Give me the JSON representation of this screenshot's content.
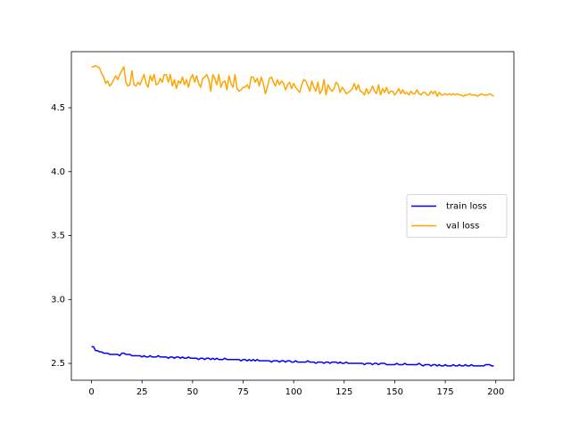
{
  "chart_data": {
    "type": "line",
    "x": [
      0,
      1,
      2,
      3,
      4,
      5,
      6,
      7,
      8,
      9,
      10,
      11,
      12,
      13,
      14,
      15,
      16,
      17,
      18,
      19,
      20,
      21,
      22,
      23,
      24,
      25,
      26,
      27,
      28,
      29,
      30,
      31,
      32,
      33,
      34,
      35,
      36,
      37,
      38,
      39,
      40,
      41,
      42,
      43,
      44,
      45,
      46,
      47,
      48,
      49,
      50,
      51,
      52,
      53,
      54,
      55,
      56,
      57,
      58,
      59,
      60,
      61,
      62,
      63,
      64,
      65,
      66,
      67,
      68,
      69,
      70,
      71,
      72,
      73,
      74,
      75,
      76,
      77,
      78,
      79,
      80,
      81,
      82,
      83,
      84,
      85,
      86,
      87,
      88,
      89,
      90,
      91,
      92,
      93,
      94,
      95,
      96,
      97,
      98,
      99,
      100,
      101,
      102,
      103,
      104,
      105,
      106,
      107,
      108,
      109,
      110,
      111,
      112,
      113,
      114,
      115,
      116,
      117,
      118,
      119,
      120,
      121,
      122,
      123,
      124,
      125,
      126,
      127,
      128,
      129,
      130,
      131,
      132,
      133,
      134,
      135,
      136,
      137,
      138,
      139,
      140,
      141,
      142,
      143,
      144,
      145,
      146,
      147,
      148,
      149,
      150,
      151,
      152,
      153,
      154,
      155,
      156,
      157,
      158,
      159,
      160,
      161,
      162,
      163,
      164,
      165,
      166,
      167,
      168,
      169,
      170,
      171,
      172,
      173,
      174,
      175,
      176,
      177,
      178,
      179,
      180,
      181,
      182,
      183,
      184,
      185,
      186,
      187,
      188,
      189,
      190,
      191,
      192,
      193,
      194,
      195,
      196,
      197,
      198,
      199
    ],
    "series": [
      {
        "name": "train loss",
        "color": "#0000ff",
        "values": [
          2.63,
          2.63,
          2.6,
          2.6,
          2.59,
          2.59,
          2.58,
          2.58,
          2.58,
          2.57,
          2.57,
          2.57,
          2.57,
          2.57,
          2.56,
          2.58,
          2.58,
          2.57,
          2.57,
          2.57,
          2.56,
          2.56,
          2.56,
          2.56,
          2.56,
          2.55,
          2.56,
          2.55,
          2.55,
          2.56,
          2.55,
          2.55,
          2.55,
          2.56,
          2.55,
          2.55,
          2.55,
          2.55,
          2.54,
          2.55,
          2.55,
          2.54,
          2.55,
          2.55,
          2.54,
          2.55,
          2.54,
          2.54,
          2.55,
          2.54,
          2.54,
          2.54,
          2.54,
          2.53,
          2.54,
          2.54,
          2.53,
          2.54,
          2.54,
          2.53,
          2.54,
          2.53,
          2.54,
          2.53,
          2.53,
          2.53,
          2.54,
          2.53,
          2.53,
          2.53,
          2.53,
          2.53,
          2.53,
          2.53,
          2.52,
          2.53,
          2.53,
          2.52,
          2.53,
          2.52,
          2.53,
          2.52,
          2.53,
          2.52,
          2.52,
          2.52,
          2.52,
          2.52,
          2.52,
          2.51,
          2.52,
          2.52,
          2.52,
          2.51,
          2.52,
          2.52,
          2.51,
          2.52,
          2.52,
          2.51,
          2.51,
          2.52,
          2.51,
          2.51,
          2.51,
          2.51,
          2.51,
          2.52,
          2.51,
          2.51,
          2.51,
          2.5,
          2.51,
          2.51,
          2.51,
          2.5,
          2.51,
          2.51,
          2.5,
          2.51,
          2.51,
          2.51,
          2.5,
          2.51,
          2.5,
          2.5,
          2.51,
          2.5,
          2.5,
          2.5,
          2.5,
          2.5,
          2.5,
          2.5,
          2.5,
          2.49,
          2.5,
          2.5,
          2.5,
          2.49,
          2.5,
          2.5,
          2.49,
          2.5,
          2.5,
          2.5,
          2.49,
          2.49,
          2.49,
          2.49,
          2.49,
          2.5,
          2.49,
          2.49,
          2.49,
          2.5,
          2.49,
          2.49,
          2.49,
          2.49,
          2.49,
          2.49,
          2.5,
          2.49,
          2.48,
          2.49,
          2.49,
          2.49,
          2.48,
          2.49,
          2.49,
          2.48,
          2.49,
          2.48,
          2.48,
          2.49,
          2.48,
          2.48,
          2.48,
          2.49,
          2.48,
          2.48,
          2.49,
          2.48,
          2.48,
          2.49,
          2.48,
          2.48,
          2.49,
          2.48,
          2.48,
          2.48,
          2.48,
          2.48,
          2.48,
          2.49,
          2.49,
          2.49,
          2.48,
          2.48
        ]
      },
      {
        "name": "val loss",
        "color": "#ffa500",
        "values": [
          4.82,
          4.82,
          4.83,
          4.82,
          4.81,
          4.77,
          4.74,
          4.69,
          4.71,
          4.67,
          4.69,
          4.72,
          4.75,
          4.72,
          4.76,
          4.79,
          4.82,
          4.7,
          4.67,
          4.68,
          4.79,
          4.68,
          4.67,
          4.7,
          4.68,
          4.72,
          4.76,
          4.69,
          4.66,
          4.75,
          4.71,
          4.76,
          4.68,
          4.69,
          4.73,
          4.7,
          4.76,
          4.76,
          4.7,
          4.76,
          4.67,
          4.72,
          4.65,
          4.71,
          4.69,
          4.74,
          4.68,
          4.72,
          4.66,
          4.73,
          4.76,
          4.7,
          4.75,
          4.69,
          4.66,
          4.73,
          4.74,
          4.76,
          4.72,
          4.63,
          4.76,
          4.73,
          4.68,
          4.76,
          4.66,
          4.7,
          4.71,
          4.64,
          4.75,
          4.69,
          4.66,
          4.76,
          4.65,
          4.63,
          4.64,
          4.66,
          4.66,
          4.68,
          4.65,
          4.74,
          4.74,
          4.7,
          4.73,
          4.67,
          4.74,
          4.69,
          4.61,
          4.66,
          4.73,
          4.74,
          4.7,
          4.67,
          4.72,
          4.68,
          4.71,
          4.69,
          4.64,
          4.68,
          4.7,
          4.65,
          4.69,
          4.66,
          4.64,
          4.62,
          4.68,
          4.72,
          4.71,
          4.67,
          4.63,
          4.71,
          4.66,
          4.63,
          4.7,
          4.61,
          4.64,
          4.72,
          4.6,
          4.68,
          4.65,
          4.63,
          4.65,
          4.7,
          4.68,
          4.62,
          4.66,
          4.64,
          4.61,
          4.62,
          4.63,
          4.65,
          4.69,
          4.64,
          4.68,
          4.63,
          4.62,
          4.6,
          4.65,
          4.61,
          4.63,
          4.67,
          4.63,
          4.61,
          4.68,
          4.6,
          4.65,
          4.62,
          4.66,
          4.61,
          4.63,
          4.63,
          4.6,
          4.62,
          4.65,
          4.61,
          4.64,
          4.61,
          4.62,
          4.6,
          4.63,
          4.61,
          4.61,
          4.64,
          4.61,
          4.6,
          4.62,
          4.62,
          4.6,
          4.6,
          4.63,
          4.61,
          4.63,
          4.59,
          4.62,
          4.6,
          4.6,
          4.61,
          4.6,
          4.61,
          4.6,
          4.61,
          4.6,
          4.61,
          4.6,
          4.6,
          4.59,
          4.6,
          4.6,
          4.61,
          4.6,
          4.6,
          4.6,
          4.59,
          4.6,
          4.61,
          4.6,
          4.6,
          4.6,
          4.61,
          4.6,
          4.59
        ]
      }
    ],
    "xlim": [
      -9.95,
      208.95
    ],
    "xticks": [
      0,
      25,
      50,
      75,
      100,
      125,
      150,
      175,
      200
    ],
    "ylim": [
      2.368,
      4.939
    ],
    "yticks": [
      2.5,
      {
        "value": 3,
        "label": "3.0"
      },
      3.5,
      {
        "value": 4,
        "label": "4.0"
      },
      4.5
    ],
    "grid": false,
    "legend": "center right"
  }
}
